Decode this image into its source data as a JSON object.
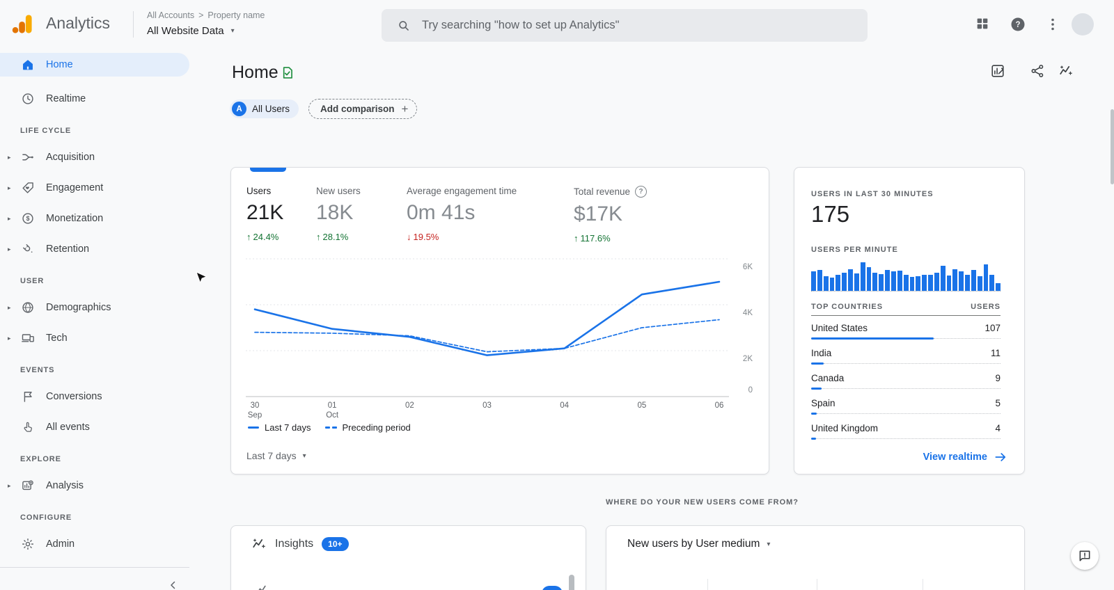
{
  "header": {
    "app_name": "Analytics",
    "breadcrumb": {
      "items": [
        "All Accounts",
        "Property name"
      ],
      "separator": ">"
    },
    "property_selector": "All Website Data",
    "search": {
      "placeholder": "Try searching \"how to set up Analytics\"",
      "icon": "search-icon"
    },
    "action_icons": [
      "apps-grid-icon",
      "help-icon",
      "more-vert-icon",
      "avatar"
    ]
  },
  "sidebar": {
    "top_items": [
      {
        "label": "Home",
        "icon": "home-icon",
        "active": true
      },
      {
        "label": "Realtime",
        "icon": "clock-icon"
      }
    ],
    "sections": [
      {
        "label": "LIFE CYCLE",
        "items": [
          {
            "label": "Acquisition",
            "icon": "acquisition-icon",
            "expandable": true
          },
          {
            "label": "Engagement",
            "icon": "engagement-icon",
            "expandable": true
          },
          {
            "label": "Monetization",
            "icon": "monetization-icon",
            "expandable": true
          },
          {
            "label": "Retention",
            "icon": "retention-icon",
            "expandable": true
          }
        ]
      },
      {
        "label": "USER",
        "items": [
          {
            "label": "Demographics",
            "icon": "demographics-icon",
            "expandable": true
          },
          {
            "label": "Tech",
            "icon": "tech-icon",
            "expandable": true
          }
        ]
      },
      {
        "label": "EVENTS",
        "items": [
          {
            "label": "Conversions",
            "icon": "conversions-icon",
            "expandable": false
          },
          {
            "label": "All events",
            "icon": "all-events-icon",
            "expandable": false
          }
        ]
      },
      {
        "label": "EXPLORE",
        "items": [
          {
            "label": "Analysis",
            "icon": "analysis-icon",
            "expandable": true
          }
        ]
      },
      {
        "label": "CONFIGURE",
        "items": [
          {
            "label": "Admin",
            "icon": "admin-icon",
            "expandable": false
          }
        ]
      }
    ]
  },
  "main": {
    "title": "Home",
    "chips": {
      "all_users_avatar": "A",
      "all_users_label": "All Users",
      "add_comparison_label": "Add comparison"
    },
    "metrics": [
      {
        "label": "Users",
        "value": "21K",
        "delta": "24.4%",
        "direction": "up",
        "selected": true
      },
      {
        "label": "New users",
        "value": "18K",
        "delta": "28.1%",
        "direction": "up",
        "selected": false
      },
      {
        "label": "Average engagement time",
        "value": "0m 41s",
        "delta": "19.5%",
        "direction": "down",
        "selected": false
      },
      {
        "label": "Total revenue",
        "value": "$17K",
        "delta": "117.6%",
        "direction": "up",
        "selected": false,
        "has_info": true
      }
    ],
    "legend": [
      {
        "label": "Last 7 days",
        "style": "solid"
      },
      {
        "label": "Preceding period",
        "style": "dashed"
      }
    ],
    "time_range": "Last 7 days"
  },
  "realtime": {
    "title": "USERS IN LAST 30 MINUTES",
    "value": "175",
    "per_minute_label": "USERS PER MINUTE",
    "link_label": "View realtime"
  },
  "bottom": {
    "insights": {
      "title": "Insights",
      "badge": "10+"
    },
    "section_title": "WHERE DO YOUR NEW USERS COME FROM?",
    "new_users_card": {
      "title": "New users by User medium"
    }
  },
  "colors": {
    "accent": "#1a73e8",
    "green": "#137333",
    "red": "#c5221f",
    "logo_amber": "#f9ab00",
    "logo_orange": "#e37400"
  },
  "chart_data": [
    {
      "type": "line",
      "title": "Users by day (Last 7 days vs Preceding period)",
      "x": [
        "30 Sep",
        "01 Oct",
        "02",
        "03",
        "04",
        "05",
        "06"
      ],
      "x_tick_lines": [
        [
          "30",
          "Sep"
        ],
        [
          "01",
          "Oct"
        ],
        [
          "02"
        ],
        [
          "03"
        ],
        [
          "04"
        ],
        [
          "05"
        ],
        [
          "06"
        ]
      ],
      "series": [
        {
          "name": "Last 7 days",
          "style": "solid",
          "values": [
            3800,
            2950,
            2600,
            1800,
            2100,
            4450,
            5000
          ]
        },
        {
          "name": "Preceding period",
          "style": "dashed",
          "values": [
            2800,
            2760,
            2650,
            1950,
            2100,
            3000,
            3350
          ]
        }
      ],
      "ylim": [
        0,
        6000
      ],
      "yticks": [
        {
          "value": 0,
          "label": "0"
        },
        {
          "value": 2000,
          "label": "2K"
        },
        {
          "value": 4000,
          "label": "4K"
        },
        {
          "value": 6000,
          "label": "6K"
        }
      ],
      "grid": "horizontal",
      "legend_position": "bottom"
    },
    {
      "type": "bar",
      "title": "USERS PER MINUTE",
      "values": [
        30,
        32,
        22,
        20,
        25,
        28,
        33,
        27,
        44,
        36,
        28,
        26,
        32,
        30,
        31,
        25,
        21,
        22,
        25,
        24,
        28,
        38,
        23,
        33,
        30,
        25,
        32,
        22,
        40,
        24,
        12
      ],
      "ylim": [
        0,
        50
      ]
    },
    {
      "type": "table",
      "title": "Top countries by users (last 30 minutes)",
      "columns": [
        "TOP COUNTRIES",
        "USERS"
      ],
      "rows": [
        {
          "country": "United States",
          "users": 107
        },
        {
          "country": "India",
          "users": 11
        },
        {
          "country": "Canada",
          "users": 9
        },
        {
          "country": "Spain",
          "users": 5
        },
        {
          "country": "United Kingdom",
          "users": 4
        }
      ],
      "bar_max": 107
    }
  ]
}
